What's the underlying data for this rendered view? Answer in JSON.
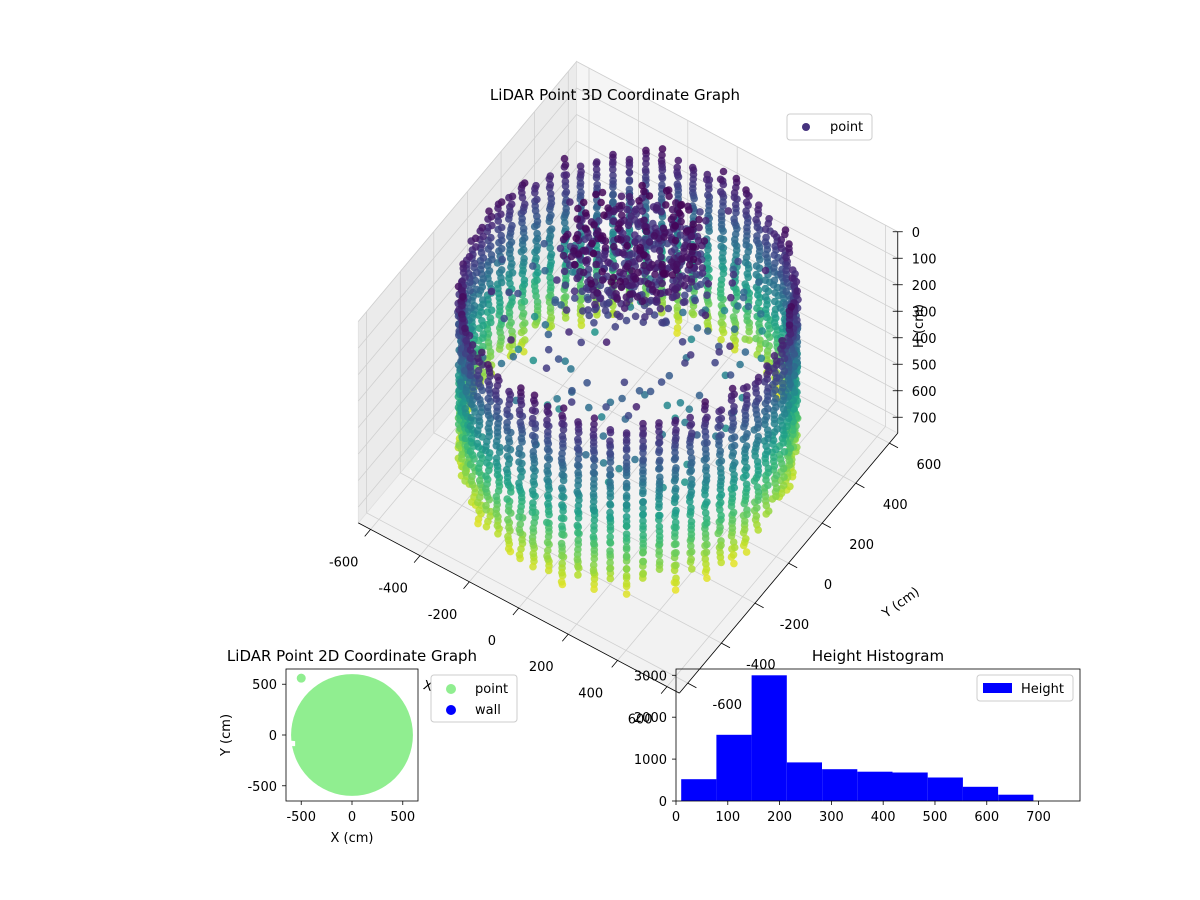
{
  "figure": {
    "background": "#ffffff"
  },
  "chart_data": [
    {
      "type": "scatter",
      "projection": "3d",
      "title": "LiDAR Point 3D Coordinate Graph",
      "xlabel": "X (cm)",
      "ylabel": "Y (cm)",
      "zlabel": "H (cm)",
      "x_ticks": [
        -600,
        -400,
        -200,
        0,
        200,
        400,
        600
      ],
      "y_ticks": [
        -600,
        -400,
        -200,
        0,
        200,
        400,
        600
      ],
      "z_ticks": [
        0,
        100,
        200,
        300,
        400,
        500,
        600,
        700
      ],
      "xlim": [
        -650,
        650
      ],
      "ylim": [
        -650,
        650
      ],
      "zlim": [
        0,
        760
      ],
      "z_inverted": true,
      "colormap": "viridis",
      "legend": {
        "placement": "top-right",
        "entries": [
          {
            "label": "point",
            "color": "#46337e"
          }
        ]
      },
      "series": [
        {
          "name": "point",
          "structure": "cylindrical wall of vertical scan columns (radius ≈ 560 cm, H 0–720 cm) plus dense cluster near center at low H",
          "wall_radius": 560,
          "h_range": [
            0,
            720
          ]
        }
      ],
      "grid": true
    },
    {
      "type": "scatter",
      "title": "LiDAR Point 2D Coordinate Graph",
      "xlabel": "X (cm)",
      "ylabel": "Y (cm)",
      "x_ticks": [
        -500,
        0,
        500
      ],
      "y_ticks": [
        -500,
        0,
        500
      ],
      "xlim": [
        -650,
        650
      ],
      "ylim": [
        -650,
        650
      ],
      "legend": {
        "placement": "outside-right",
        "entries": [
          {
            "label": "point",
            "color": "#90ee90"
          },
          {
            "label": "wall",
            "color": "#0000ff"
          }
        ]
      },
      "series": [
        {
          "name": "point",
          "color": "#90ee90",
          "shape": "filled disk",
          "radius_cm": 600
        },
        {
          "name": "wall",
          "color": "#0000ff",
          "values": []
        }
      ],
      "grid": false
    },
    {
      "type": "bar",
      "subtype": "histogram",
      "title": "Height Histogram",
      "xlabel": "",
      "ylabel": "",
      "x_ticks": [
        0,
        100,
        200,
        300,
        400,
        500,
        600,
        700
      ],
      "y_ticks": [
        0,
        1000,
        2000,
        3000
      ],
      "xlim": [
        0,
        780
      ],
      "ylim": [
        0,
        3150
      ],
      "bar_color": "#0000ff",
      "legend": {
        "placement": "top-right",
        "entries": [
          {
            "label": "Height",
            "color": "#0000ff"
          }
        ]
      },
      "bins": [
        {
          "x0": 10,
          "x1": 78,
          "count": 520
        },
        {
          "x0": 78,
          "x1": 146,
          "count": 1580
        },
        {
          "x0": 146,
          "x1": 214,
          "count": 3000
        },
        {
          "x0": 214,
          "x1": 282,
          "count": 920
        },
        {
          "x0": 282,
          "x1": 350,
          "count": 760
        },
        {
          "x0": 350,
          "x1": 418,
          "count": 700
        },
        {
          "x0": 418,
          "x1": 486,
          "count": 680
        },
        {
          "x0": 486,
          "x1": 554,
          "count": 560
        },
        {
          "x0": 554,
          "x1": 622,
          "count": 340
        },
        {
          "x0": 622,
          "x1": 690,
          "count": 150
        }
      ],
      "grid": false
    }
  ]
}
